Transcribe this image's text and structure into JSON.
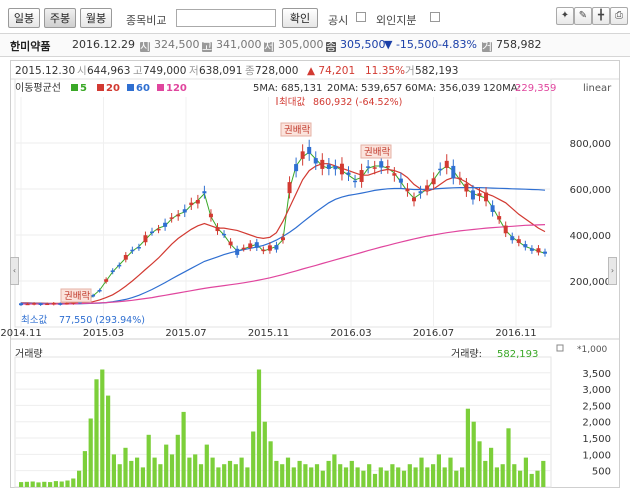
{
  "toolbar": {
    "tabs": [
      "일봉",
      "주봉",
      "월봉"
    ],
    "compare_label": "종목비교",
    "confirm_label": "확인",
    "short_label": "공시",
    "foreign_label": "외인지분"
  },
  "info": {
    "name": "한미약품",
    "date": "2016.12.29",
    "open_icon": "시",
    "open": "324,500",
    "high_icon": "고",
    "high": "341,000",
    "low_icon": "저",
    "low": "305,000",
    "close_icon": "종",
    "close": "305,500",
    "change": "▼ -15,500",
    "change_pct": "-4.83%",
    "volume_icon": "거",
    "volume": "758,982"
  },
  "price_header": {
    "date": "2015.12.30",
    "open_label": "시",
    "open": "644,963",
    "high_label": "고",
    "high": "749,000",
    "low_label": "저",
    "low": "638,091",
    "close_label": "종",
    "close": "728,000",
    "change": "▲ 74,201",
    "change_pct": "11.35%",
    "vol_label": "거",
    "vol": "582,193"
  },
  "legend": {
    "title": "이동평균선",
    "items": [
      {
        "label": "5",
        "color": "#3aa827"
      },
      {
        "label": "20",
        "color": "#d23a32"
      },
      {
        "label": "60",
        "color": "#2f6fd1"
      },
      {
        "label": "120",
        "color": "#e0469e"
      }
    ],
    "ma_values": [
      {
        "label": "5MA:",
        "value": "685,131"
      },
      {
        "label": "20MA:",
        "value": "539,657"
      },
      {
        "label": "60MA:",
        "value": "356,039"
      },
      {
        "label": "120MA:",
        "value": "229,359"
      }
    ],
    "scale": "linear"
  },
  "annotations": {
    "max_label": "최대값",
    "max_value": "860,932 (-64.52%)",
    "min_label": "최소값",
    "min_value": "77,550 (293.94%)",
    "rights1": "권배락",
    "rights2": "권배락",
    "rights3": "권배락"
  },
  "volume_header": {
    "title": "거래량",
    "label": "거래량:",
    "value": "582,193",
    "unit": "*1,000"
  },
  "colors": {
    "up": "#d23a32",
    "down": "#2f6fd1",
    "volume": "#7ccf3a",
    "ma5": "#3aa827",
    "ma20": "#d23a32",
    "ma60": "#2f6fd1",
    "ma120": "#e0469e"
  },
  "chart_data": [
    {
      "type": "line",
      "title": "",
      "x_ticks": [
        "2014.11",
        "2015.03",
        "2015.07",
        "2015.11",
        "2016.03",
        "2016.07",
        "2016.11"
      ],
      "y_ticks": [
        "200,000",
        "400,000",
        "600,000",
        "800,000"
      ],
      "ylim": [
        0,
        1000000
      ],
      "grid": true,
      "series": [
        {
          "name": "5",
          "values": [
            100000,
            100000,
            100000,
            100000,
            100000,
            100000,
            101000,
            102000,
            104000,
            108000,
            115000,
            135000,
            160000,
            200000,
            240000,
            270000,
            300000,
            330000,
            350000,
            380000,
            410000,
            430000,
            440000,
            470000,
            490000,
            500000,
            530000,
            550000,
            580000,
            480000,
            430000,
            400000,
            360000,
            330000,
            340000,
            350000,
            360000,
            330000,
            340000,
            350000,
            380000,
            600000,
            700000,
            740000,
            760000,
            730000,
            700000,
            690000,
            700000,
            680000,
            660000,
            640000,
            650000,
            690000,
            700000,
            700000,
            690000,
            670000,
            630000,
            590000,
            560000,
            580000,
            600000,
            640000,
            680000,
            700000,
            680000,
            640000,
            600000,
            580000,
            570000,
            560000,
            520000,
            470000,
            420000,
            390000,
            370000,
            350000,
            340000,
            330000,
            320000
          ]
        },
        {
          "name": "20",
          "values": [
            105000,
            105000,
            104000,
            104000,
            103000,
            103000,
            103000,
            103000,
            104000,
            104000,
            106000,
            110000,
            118000,
            128000,
            140000,
            158000,
            178000,
            200000,
            225000,
            250000,
            275000,
            300000,
            330000,
            360000,
            385000,
            405000,
            425000,
            440000,
            450000,
            440000,
            430000,
            430000,
            425000,
            420000,
            410000,
            400000,
            390000,
            385000,
            390000,
            410000,
            460000,
            520000,
            580000,
            640000,
            680000,
            700000,
            710000,
            710000,
            700000,
            690000,
            680000,
            670000,
            660000,
            660000,
            670000,
            680000,
            685000,
            680000,
            670000,
            650000,
            620000,
            600000,
            590000,
            600000,
            620000,
            640000,
            650000,
            645000,
            630000,
            610000,
            595000,
            580000,
            570000,
            555000,
            540000,
            515000,
            490000,
            470000,
            450000,
            430000,
            415000
          ]
        },
        {
          "name": "60",
          "values": [
            103000,
            103000,
            103000,
            102000,
            102000,
            101000,
            101000,
            101000,
            101000,
            101000,
            102000,
            103000,
            104000,
            106000,
            110000,
            115000,
            120000,
            128000,
            138000,
            150000,
            163000,
            178000,
            193000,
            209000,
            225000,
            240000,
            255000,
            270000,
            285000,
            295000,
            305000,
            315000,
            323000,
            330000,
            336000,
            342000,
            348000,
            355000,
            365000,
            378000,
            394000,
            412000,
            432000,
            455000,
            478000,
            500000,
            520000,
            540000,
            555000,
            565000,
            572000,
            577000,
            582000,
            588000,
            594000,
            598000,
            601000,
            602000,
            602000,
            600000,
            598000,
            598000,
            599000,
            600000,
            602000,
            604000,
            605000,
            606000,
            606000,
            606000,
            606000,
            605000,
            604000,
            603000,
            602000,
            601000,
            600000,
            599000,
            598000,
            597000,
            595000
          ]
        },
        {
          "name": "120",
          "values": [
            100000,
            100000,
            100000,
            100000,
            100000,
            100000,
            100000,
            100000,
            101000,
            102000,
            103000,
            104000,
            105000,
            106000,
            108000,
            110000,
            113000,
            116000,
            120000,
            124000,
            128000,
            133000,
            138000,
            143000,
            148000,
            153000,
            158000,
            163000,
            168000,
            172000,
            176000,
            180000,
            184000,
            188000,
            192000,
            197000,
            202000,
            208000,
            214000,
            221000,
            228000,
            236000,
            244000,
            252000,
            260000,
            268000,
            276000,
            284000,
            292000,
            300000,
            308000,
            316000,
            324000,
            332000,
            340000,
            348000,
            355000,
            362000,
            369000,
            376000,
            383000,
            389000,
            395000,
            400000,
            405000,
            410000,
            414000,
            418000,
            421000,
            424000,
            427000,
            430000,
            432000,
            434000,
            436000,
            438000,
            440000,
            442000,
            443000,
            444000,
            445000
          ]
        }
      ]
    },
    {
      "type": "bar",
      "title": "거래량",
      "y_ticks": [
        "500",
        "1,000",
        "1,500",
        "2,000",
        "2,500",
        "3,000",
        "3,500"
      ],
      "ylim": [
        0,
        3800
      ],
      "unit": "*1,000",
      "values": [
        150,
        160,
        170,
        140,
        160,
        150,
        180,
        170,
        200,
        260,
        500,
        1100,
        2100,
        3300,
        3600,
        2800,
        1000,
        700,
        1200,
        800,
        900,
        600,
        1600,
        900,
        700,
        1300,
        1000,
        1600,
        2300,
        900,
        1000,
        700,
        1300,
        900,
        600,
        700,
        800,
        700,
        900,
        600,
        1700,
        3600,
        2000,
        1400,
        800,
        700,
        900,
        600,
        800,
        700,
        600,
        700,
        500,
        800,
        1000,
        700,
        600,
        800,
        600,
        500,
        700,
        400,
        600,
        500,
        700,
        600,
        500,
        700,
        600,
        900,
        600,
        700,
        1000,
        600,
        900,
        500,
        600,
        2400,
        2000,
        1400,
        800,
        1200,
        600,
        700,
        1800,
        700,
        500,
        900,
        400,
        500,
        800
      ]
    }
  ]
}
